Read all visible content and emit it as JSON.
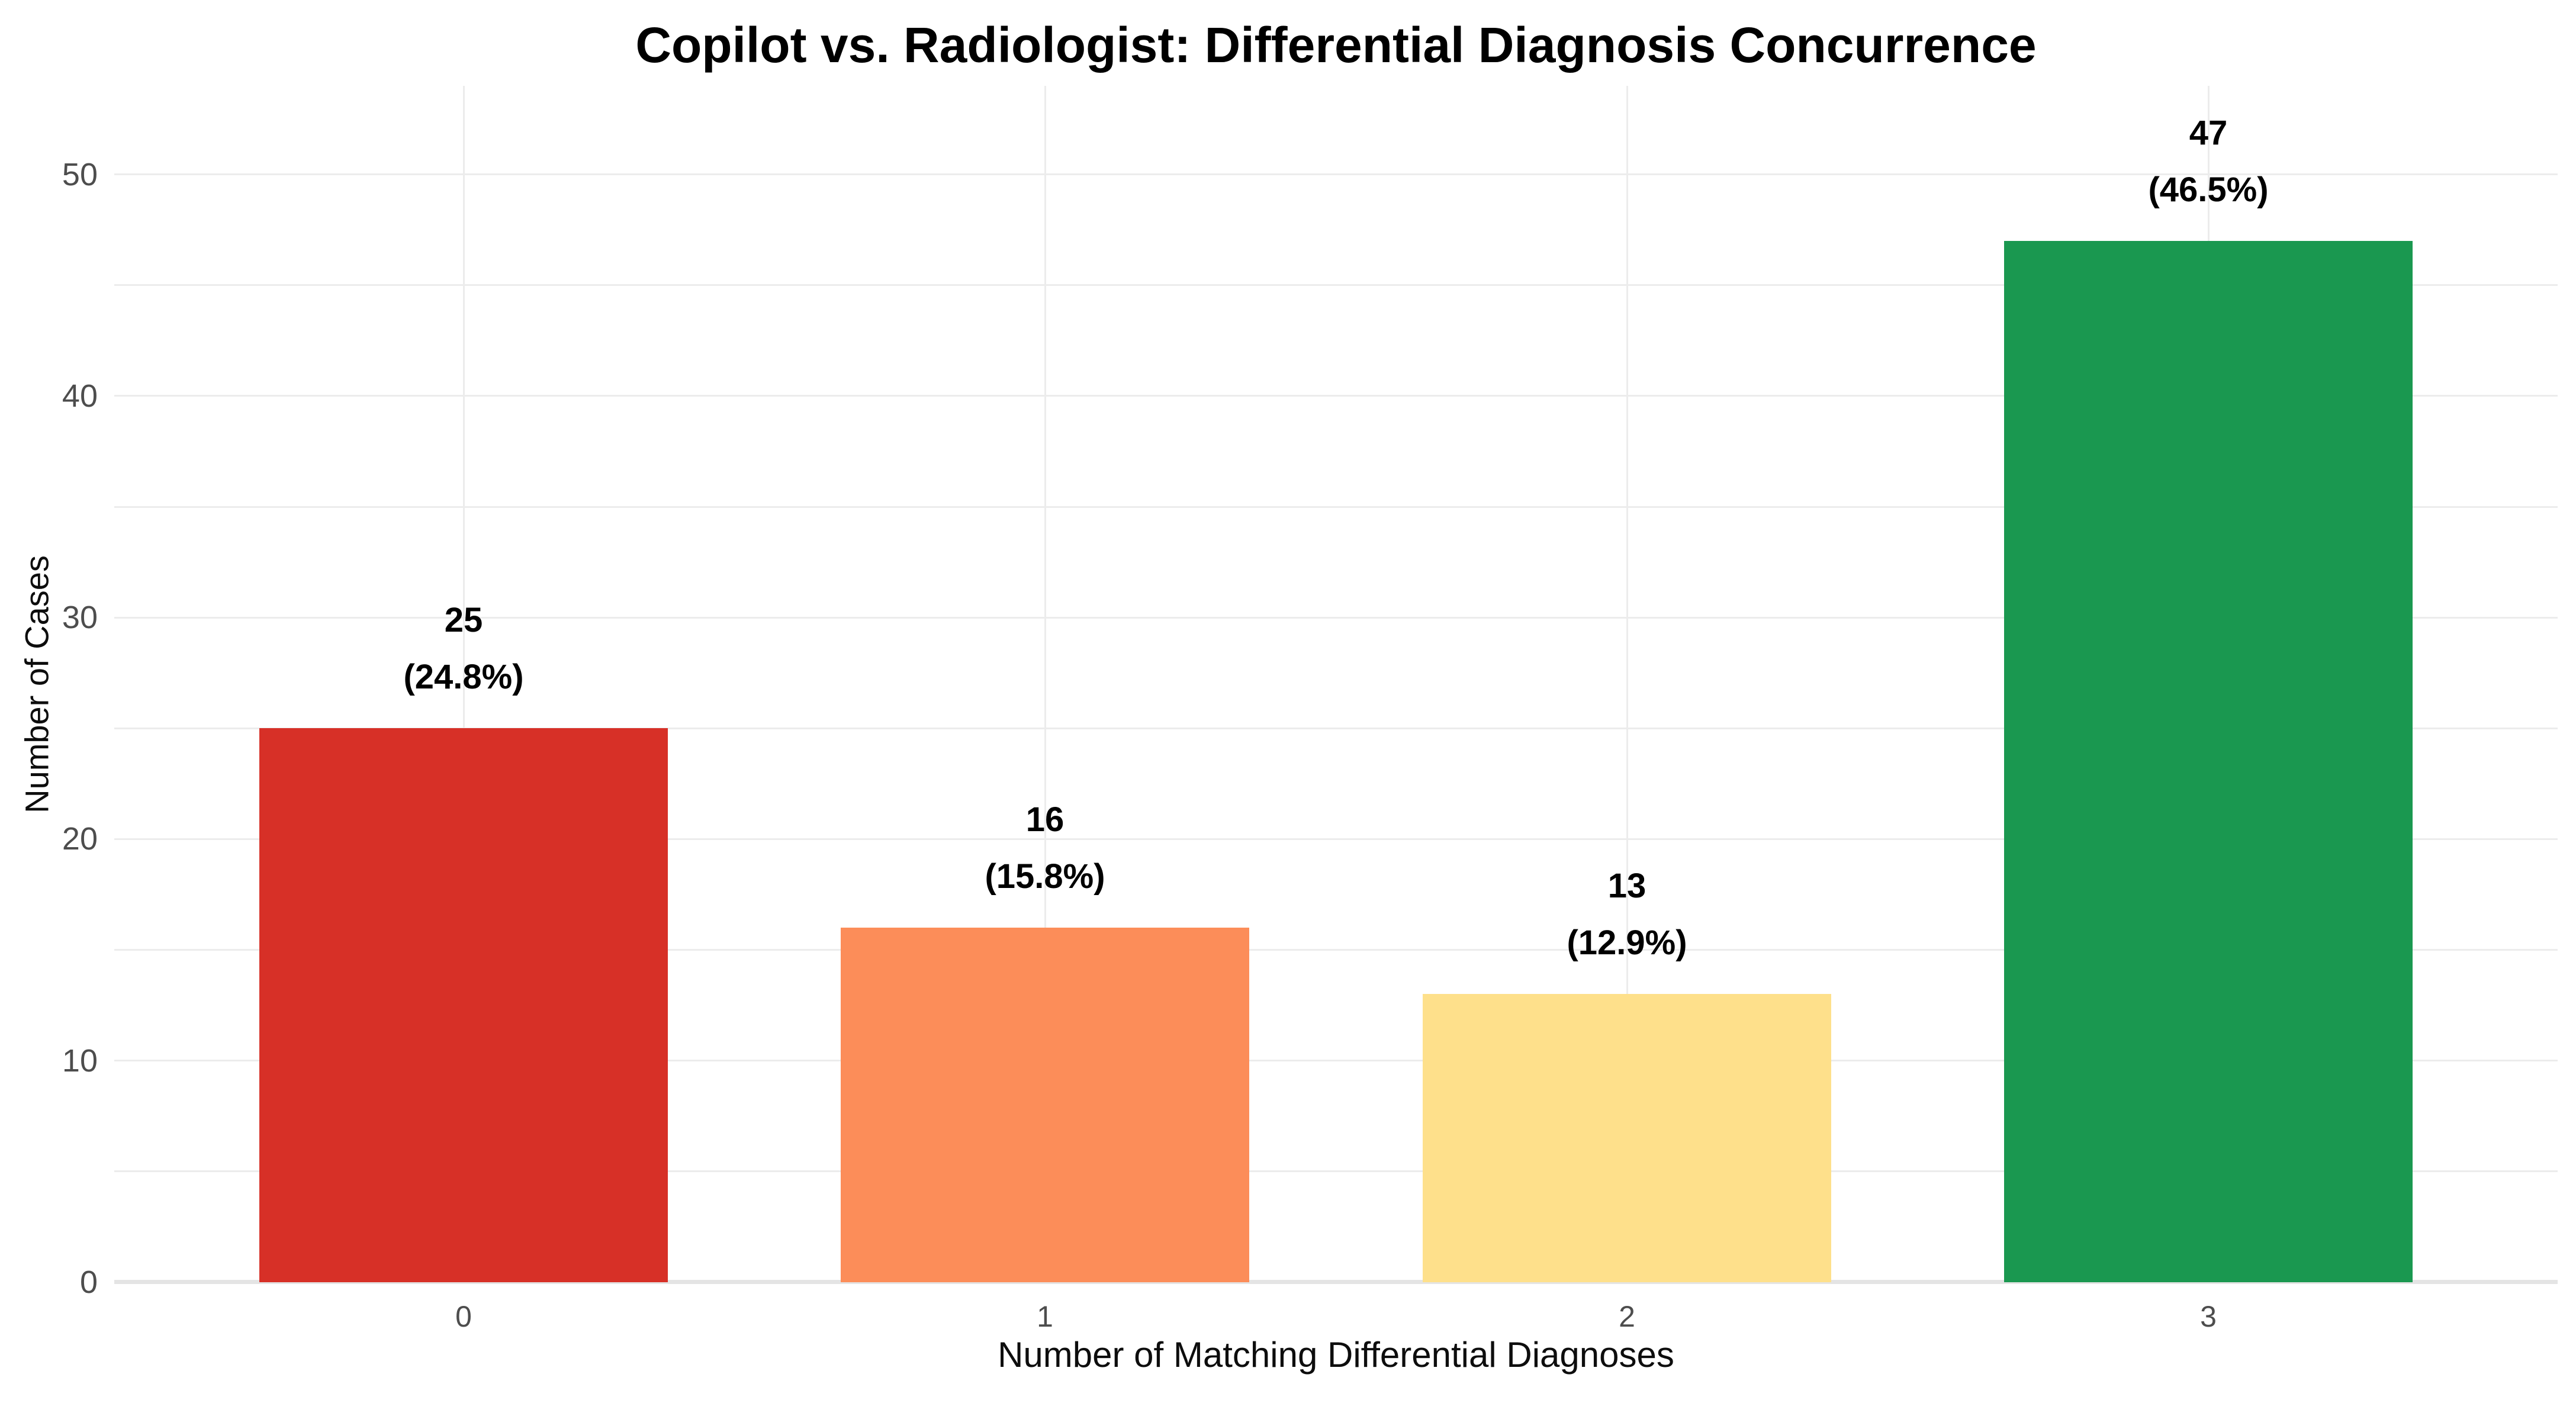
{
  "chart_data": {
    "type": "bar",
    "title": "Copilot vs. Radiologist: Differential Diagnosis Concurrence",
    "xlabel": "Number of Matching Differential Diagnoses",
    "ylabel": "Number of Cases",
    "categories": [
      "0",
      "1",
      "2",
      "3"
    ],
    "values": [
      25,
      16,
      13,
      47
    ],
    "count_labels": [
      "25",
      "16",
      "13",
      "47"
    ],
    "percent_labels": [
      "(24.8%)",
      "(15.8%)",
      "(12.9%)",
      "(46.5%)"
    ],
    "bar_colors": [
      "#d73027",
      "#fc8d59",
      "#fee08b",
      "#1a9850"
    ],
    "yticks": [
      0,
      10,
      20,
      30,
      40,
      50
    ],
    "ylim": [
      0,
      54
    ],
    "grid": "on",
    "grid_interval": 5,
    "grid_color": "#ececec",
    "axis_line_color": "#e4e4e4",
    "tick_label_color": "#4d4d4d",
    "legend_position": "none"
  }
}
